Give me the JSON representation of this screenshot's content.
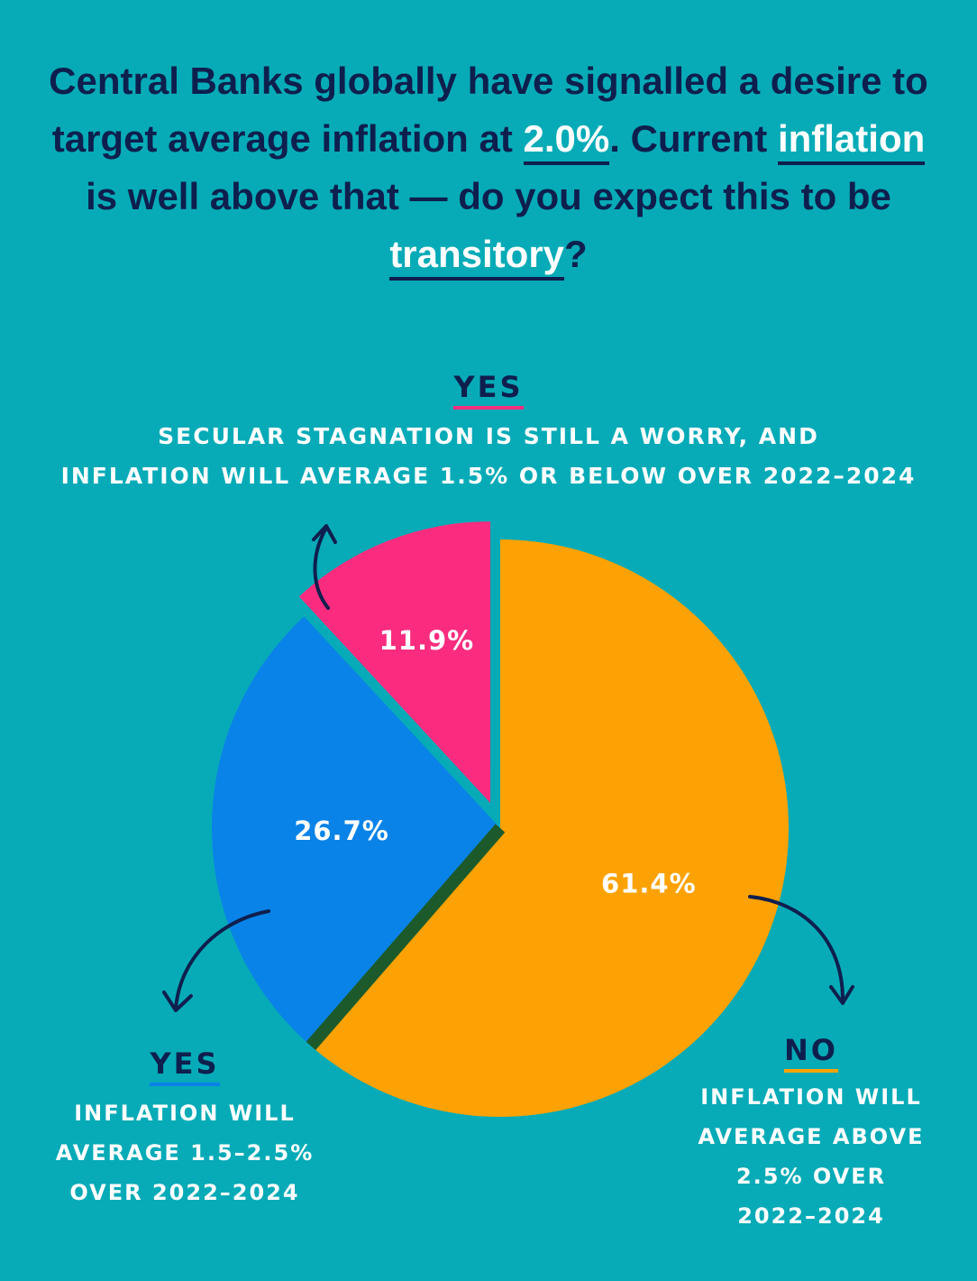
{
  "title": {
    "part1": "Central Banks globally have signalled a desire to target average inflation at ",
    "hl1": "2.0%",
    "part2": ". Current ",
    "hl2": "inflation",
    "part3": " is well above that — do you expect this to be ",
    "hl3": "transitory",
    "part4": "?"
  },
  "annotations": {
    "top": {
      "answer": "YES",
      "line1": "SECULAR STAGNATION IS STILL A WORRY, AND",
      "line2": "INFLATION WILL AVERAGE 1.5% OR BELOW OVER 2022–2024"
    },
    "left": {
      "answer": "YES",
      "line1": "INFLATION WILL",
      "line2": "AVERAGE 1.5–2.5%",
      "line3": "OVER 2022–2024"
    },
    "right": {
      "answer": "NO",
      "line1": "INFLATION WILL",
      "line2": "AVERAGE ABOVE",
      "line3": "2.5% OVER",
      "line4": "2022–2024"
    }
  },
  "colors": {
    "background": "#06abb7",
    "navy": "#0e1f4e",
    "orange": "#fca204",
    "blue": "#0983e8",
    "pink": "#fb2c7f",
    "divider": "#1c5a2b"
  },
  "chart_data": {
    "type": "pie",
    "slices": [
      {
        "name": "No",
        "value": 61.4,
        "label": "61.4%",
        "color": "#fca204"
      },
      {
        "name": "Yes (1.5–2.5%)",
        "value": 26.7,
        "label": "26.7%",
        "color": "#0983e8"
      },
      {
        "name": "Yes (1.5% or below)",
        "value": 11.9,
        "label": "11.9%",
        "color": "#fb2c7f",
        "exploded": true
      }
    ]
  }
}
